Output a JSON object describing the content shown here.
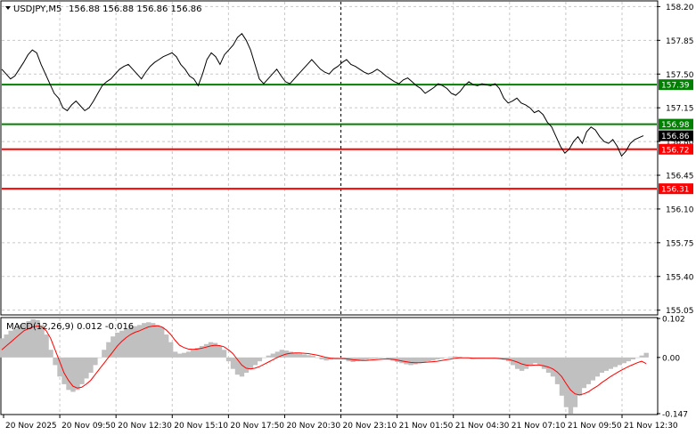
{
  "header": {
    "symbol": "USDJPY,M5",
    "ohlc": "156.88 156.88 156.86 156.86"
  },
  "macd_header": {
    "label": "MACD(12,26,9) 0.012 -0.016"
  },
  "colors": {
    "price_line": "#000000",
    "grid": "#c8c8c8",
    "green_level": "#008000",
    "red_level": "#ff0000",
    "histogram": "#c0c0c0",
    "signal": "#ff0000",
    "current_price_tag": "#000000"
  },
  "chart_data": [
    {
      "type": "line",
      "name_on_chart": "USDJPY,M5",
      "grid": true,
      "y_ticks": [
        "158.20",
        "157.85",
        "157.50",
        "157.15",
        "156.80",
        "156.45",
        "156.10",
        "155.75",
        "155.40",
        "155.05"
      ],
      "ylim": [
        155.01,
        158.25
      ],
      "x_ticks": [
        "20 Nov 2025",
        "20 Nov 09:50",
        "20 Nov 12:30",
        "20 Nov 15:10",
        "20 Nov 17:50",
        "20 Nov 20:30",
        "20 Nov 23:10",
        "21 Nov 01:50",
        "21 Nov 04:30",
        "21 Nov 07:10",
        "21 Nov 09:50",
        "21 Nov 12:30"
      ],
      "levels": [
        {
          "value": 157.39,
          "label": "157.39",
          "color": "green"
        },
        {
          "value": 156.98,
          "label": "156.98",
          "color": "green"
        },
        {
          "value": 156.72,
          "label": "156.72",
          "color": "red"
        },
        {
          "value": 156.31,
          "label": "156.31",
          "color": "red"
        }
      ],
      "current_price": {
        "value": 156.86,
        "label": "156.86"
      },
      "separator_at_tick": "20 Nov 23:10",
      "price": [
        157.55,
        157.5,
        157.45,
        157.48,
        157.55,
        157.62,
        157.7,
        157.75,
        157.72,
        157.6,
        157.5,
        157.4,
        157.3,
        157.25,
        157.15,
        157.12,
        157.18,
        157.22,
        157.17,
        157.12,
        157.15,
        157.22,
        157.3,
        157.38,
        157.42,
        157.45,
        157.5,
        157.55,
        157.58,
        157.6,
        157.55,
        157.5,
        157.45,
        157.52,
        157.58,
        157.62,
        157.65,
        157.68,
        157.7,
        157.72,
        157.68,
        157.6,
        157.55,
        157.48,
        157.45,
        157.38,
        157.5,
        157.65,
        157.72,
        157.68,
        157.6,
        157.7,
        157.75,
        157.8,
        157.88,
        157.92,
        157.85,
        157.75,
        157.6,
        157.45,
        157.4,
        157.45,
        157.5,
        157.55,
        157.48,
        157.42,
        157.4,
        157.45,
        157.5,
        157.55,
        157.6,
        157.65,
        157.6,
        157.55,
        157.52,
        157.5,
        157.55,
        157.58,
        157.62,
        157.65,
        157.6,
        157.58,
        157.55,
        157.52,
        157.5,
        157.52,
        157.55,
        157.52,
        157.48,
        157.45,
        157.42,
        157.4,
        157.44,
        157.46,
        157.42,
        157.38,
        157.35,
        157.3,
        157.33,
        157.36,
        157.4,
        157.38,
        157.35,
        157.3,
        157.28,
        157.32,
        157.38,
        157.42,
        157.39,
        157.38,
        157.4,
        157.39,
        157.38,
        157.4,
        157.35,
        157.25,
        157.2,
        157.22,
        157.25,
        157.2,
        157.18,
        157.15,
        157.1,
        157.12,
        157.08,
        157.0,
        156.95,
        156.85,
        156.75,
        156.68,
        156.72,
        156.8,
        156.85,
        156.78,
        156.9,
        156.95,
        156.92,
        156.85,
        156.8,
        156.78,
        156.82,
        156.75,
        156.65,
        156.7,
        156.78,
        156.82,
        156.84,
        156.86
      ],
      "macd": {
        "ylim": [
          -0.147,
          0.102
        ],
        "y_ticks": [
          "0.102",
          "0.00",
          "-0.147"
        ],
        "histogram": [
          0.05,
          0.06,
          0.07,
          0.075,
          0.085,
          0.09,
          0.095,
          0.1,
          0.098,
          0.085,
          0.06,
          0.02,
          -0.02,
          -0.05,
          -0.07,
          -0.085,
          -0.09,
          -0.085,
          -0.07,
          -0.055,
          -0.04,
          -0.02,
          0.0,
          0.02,
          0.04,
          0.055,
          0.065,
          0.07,
          0.075,
          0.08,
          0.082,
          0.085,
          0.09,
          0.092,
          0.09,
          0.085,
          0.08,
          0.06,
          0.04,
          0.015,
          0.01,
          0.012,
          0.015,
          0.02,
          0.025,
          0.03,
          0.035,
          0.04,
          0.038,
          0.03,
          0.02,
          -0.01,
          -0.03,
          -0.045,
          -0.05,
          -0.04,
          -0.03,
          -0.02,
          -0.01,
          0.0,
          0.005,
          0.01,
          0.015,
          0.02,
          0.018,
          0.015,
          0.012,
          0.01,
          0.008,
          0.006,
          0.004,
          0.0,
          -0.005,
          -0.008,
          -0.006,
          -0.004,
          -0.002,
          -0.005,
          -0.01,
          -0.012,
          -0.01,
          -0.008,
          -0.006,
          -0.004,
          -0.003,
          -0.002,
          0.0,
          -0.004,
          -0.008,
          -0.012,
          -0.015,
          -0.018,
          -0.02,
          -0.018,
          -0.015,
          -0.012,
          -0.01,
          -0.008,
          -0.005,
          -0.003,
          0.0,
          0.002,
          0.003,
          0.002,
          0.0,
          -0.002,
          -0.004,
          -0.003,
          -0.002,
          -0.001,
          0.0,
          -0.002,
          -0.004,
          -0.006,
          -0.01,
          -0.02,
          -0.03,
          -0.035,
          -0.03,
          -0.02,
          -0.015,
          -0.02,
          -0.03,
          -0.04,
          -0.05,
          -0.07,
          -0.1,
          -0.13,
          -0.147,
          -0.13,
          -0.1,
          -0.08,
          -0.07,
          -0.06,
          -0.05,
          -0.04,
          -0.035,
          -0.03,
          -0.025,
          -0.02,
          -0.015,
          -0.01,
          -0.005,
          0.0,
          0.005,
          0.012
        ],
        "signal": [
          0.02,
          0.03,
          0.04,
          0.05,
          0.06,
          0.07,
          0.075,
          0.08,
          0.082,
          0.08,
          0.07,
          0.05,
          0.02,
          -0.01,
          -0.04,
          -0.06,
          -0.075,
          -0.08,
          -0.078,
          -0.07,
          -0.06,
          -0.045,
          -0.03,
          -0.015,
          0.0,
          0.015,
          0.03,
          0.042,
          0.052,
          0.06,
          0.066,
          0.07,
          0.075,
          0.08,
          0.082,
          0.083,
          0.08,
          0.072,
          0.06,
          0.045,
          0.032,
          0.026,
          0.022,
          0.021,
          0.022,
          0.024,
          0.027,
          0.03,
          0.032,
          0.031,
          0.028,
          0.02,
          0.01,
          -0.005,
          -0.02,
          -0.028,
          -0.03,
          -0.028,
          -0.024,
          -0.018,
          -0.012,
          -0.006,
          0.0,
          0.005,
          0.009,
          0.011,
          0.012,
          0.012,
          0.011,
          0.01,
          0.008,
          0.006,
          0.003,
          0.0,
          -0.002,
          -0.003,
          -0.003,
          -0.003,
          -0.004,
          -0.006,
          -0.007,
          -0.008,
          -0.008,
          -0.007,
          -0.006,
          -0.005,
          -0.004,
          -0.004,
          -0.005,
          -0.007,
          -0.009,
          -0.011,
          -0.013,
          -0.014,
          -0.014,
          -0.013,
          -0.012,
          -0.011,
          -0.01,
          -0.008,
          -0.006,
          -0.004,
          -0.002,
          -0.001,
          -0.001,
          -0.001,
          -0.002,
          -0.002,
          -0.002,
          -0.002,
          -0.002,
          -0.002,
          -0.003,
          -0.004,
          -0.005,
          -0.008,
          -0.012,
          -0.017,
          -0.02,
          -0.021,
          -0.02,
          -0.02,
          -0.022,
          -0.025,
          -0.03,
          -0.038,
          -0.05,
          -0.068,
          -0.085,
          -0.095,
          -0.098,
          -0.095,
          -0.09,
          -0.082,
          -0.075,
          -0.066,
          -0.058,
          -0.05,
          -0.043,
          -0.036,
          -0.03,
          -0.024,
          -0.019,
          -0.014,
          -0.01,
          -0.016
        ]
      }
    }
  ]
}
